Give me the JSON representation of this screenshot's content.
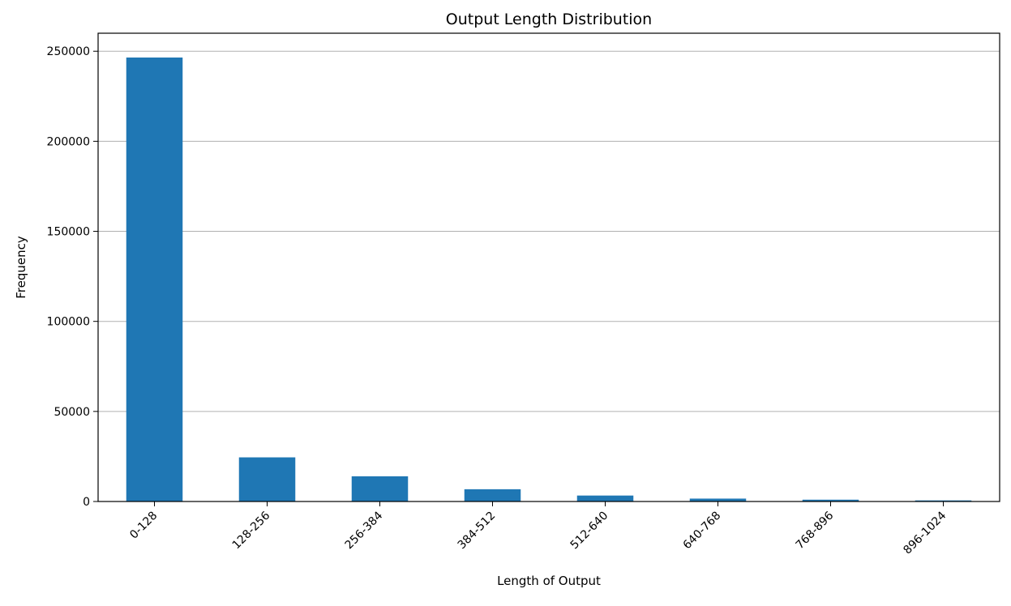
{
  "chart_data": {
    "type": "bar",
    "title": "Output Length Distribution",
    "xlabel": "Length of Output",
    "ylabel": "Frequency",
    "categories": [
      "0-128",
      "128-256",
      "256-384",
      "384-512",
      "512-640",
      "640-768",
      "768-896",
      "896-1024"
    ],
    "values": [
      246500,
      24500,
      14000,
      6800,
      3300,
      1600,
      1000,
      600
    ],
    "ylim": [
      0,
      260000
    ],
    "yticks": [
      0,
      50000,
      100000,
      150000,
      200000,
      250000
    ],
    "ytick_labels": [
      "0",
      "50000",
      "100000",
      "150000",
      "200000",
      "250000"
    ],
    "grid": "horizontal",
    "legend": "none",
    "bar_color": "#1f77b4",
    "grid_color": "#b0b0b0"
  }
}
